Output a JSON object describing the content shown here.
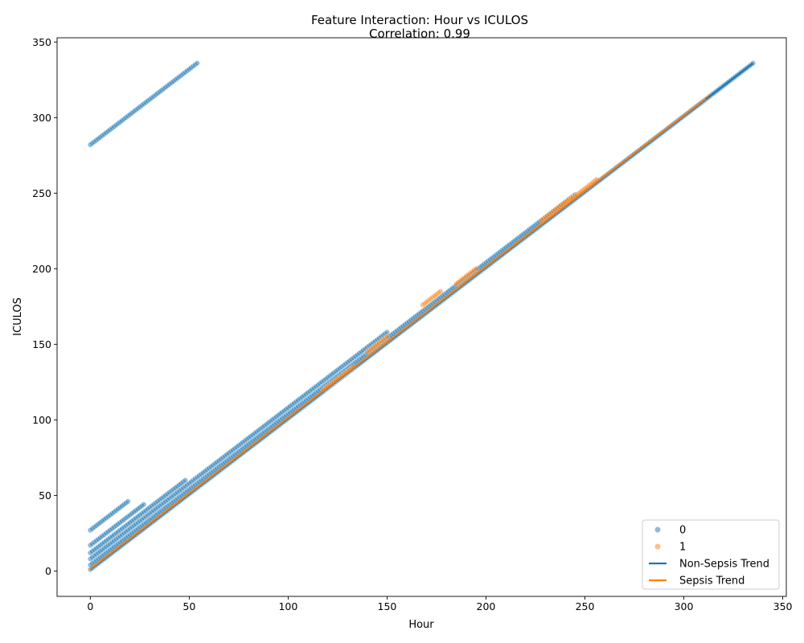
{
  "chart_data": {
    "type": "scatter",
    "title": "Feature Interaction: Hour vs ICULOS",
    "subtitle": "Correlation: 0.99",
    "xlabel": "Hour",
    "ylabel": "ICULOS",
    "xlim": [
      -16.8,
      351.8
    ],
    "ylim": [
      -16.8,
      352.8
    ],
    "xticks": [
      0,
      50,
      100,
      150,
      200,
      250,
      300,
      350
    ],
    "yticks": [
      0,
      50,
      100,
      150,
      200,
      250,
      300,
      350
    ],
    "grid": false,
    "legend_position": "lower-right",
    "colors": {
      "non_sepsis": "#1f77b4",
      "sepsis": "#ff7f0e"
    },
    "series": [
      {
        "name": "0",
        "kind": "scatter",
        "color": "#1f77b4",
        "segments": [
          {
            "x_start": 0,
            "x_end": 54,
            "offset": 282
          },
          {
            "x_start": 0,
            "x_end": 19,
            "offset": 27
          },
          {
            "x_start": 0,
            "x_end": 27,
            "offset": 17
          },
          {
            "x_start": 0,
            "x_end": 48,
            "offset": 12
          },
          {
            "x_start": 0,
            "x_end": 335,
            "offset": 1
          },
          {
            "x_start": 0,
            "x_end": 150,
            "offset": 8
          },
          {
            "x_start": 0,
            "x_end": 245,
            "offset": 4
          }
        ]
      },
      {
        "name": "1",
        "kind": "scatter",
        "color": "#ff7f0e",
        "segments": [
          {
            "x_start": 118,
            "x_end": 133,
            "offset": 2
          },
          {
            "x_start": 140,
            "x_end": 150,
            "offset": 5
          },
          {
            "x_start": 168,
            "x_end": 177,
            "offset": 8
          },
          {
            "x_start": 185,
            "x_end": 195,
            "offset": 5
          },
          {
            "x_start": 228,
            "x_end": 243,
            "offset": 4
          },
          {
            "x_start": 243,
            "x_end": 256,
            "offset": 3
          },
          {
            "x_start": 312,
            "x_end": 313,
            "offset": 1
          }
        ]
      },
      {
        "name": "Non-Sepsis Trend",
        "kind": "line",
        "color": "#1f77b4",
        "x": [
          0,
          335
        ],
        "y": [
          1,
          336
        ]
      },
      {
        "name": "Sepsis Trend",
        "kind": "line",
        "color": "#ff7f0e",
        "x": [
          0,
          311
        ],
        "y": [
          1.5,
          312.5
        ]
      }
    ],
    "legend": [
      {
        "label": "0",
        "kind": "marker",
        "color": "#1f77b4"
      },
      {
        "label": "1",
        "kind": "marker",
        "color": "#ff7f0e"
      },
      {
        "label": "Non-Sepsis Trend",
        "kind": "line",
        "color": "#1f77b4"
      },
      {
        "label": "Sepsis Trend",
        "kind": "line",
        "color": "#ff7f0e"
      }
    ]
  }
}
